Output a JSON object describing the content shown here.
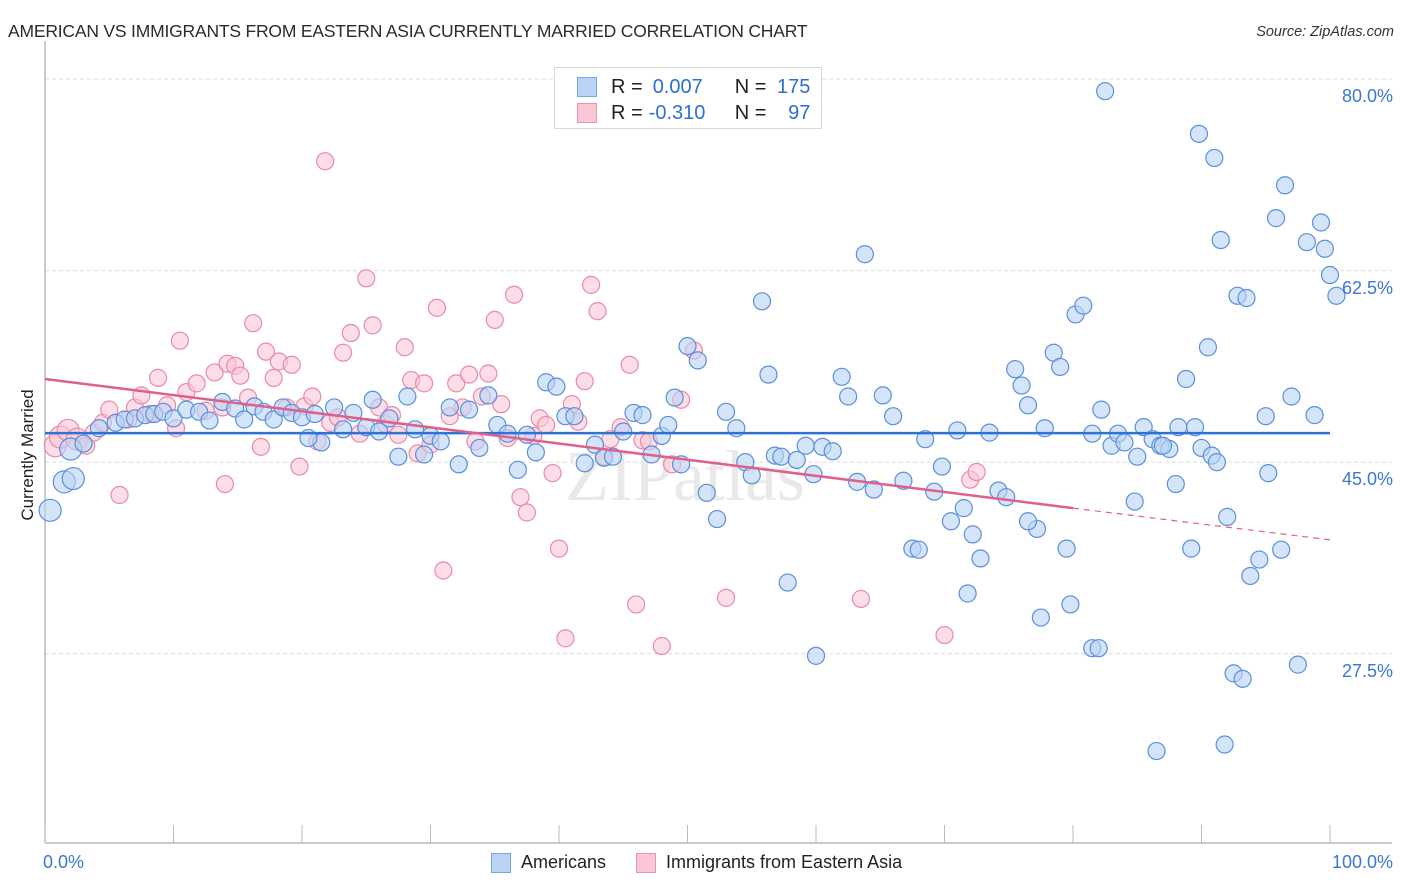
{
  "title": "AMERICAN VS IMMIGRANTS FROM EASTERN ASIA CURRENTLY MARRIED CORRELATION CHART",
  "source": "Source: ZipAtlas.com",
  "watermark": "ZIPatlas",
  "legend_top": {
    "rows": [
      {
        "series": "Americans",
        "r_label": "R =",
        "r_value": "0.007",
        "n_label": "N =",
        "n_value": "175"
      },
      {
        "series": "Immigrants from Eastern Asia",
        "r_label": "R =",
        "r_value": "-0.310",
        "n_label": "N =",
        "n_value": "97"
      }
    ]
  },
  "colors": {
    "blue_fill": "#b9d3f5",
    "blue_stroke": "#5b8fdc",
    "blue_line": "#2f72d6",
    "pink_fill": "#fbc6d6",
    "pink_stroke": "#e98aa8",
    "pink_line": "#e0608d",
    "tick_text": "#3a78d4",
    "grid": "#dcdcdc"
  },
  "chart_data": {
    "type": "scatter",
    "title": "AMERICAN VS IMMIGRANTS FROM EASTERN ASIA CURRENTLY MARRIED CORRELATION CHART",
    "xlabel": "",
    "ylabel": "Currently Married",
    "xlim": [
      0,
      100
    ],
    "ylim": [
      10.2,
      81.2
    ],
    "x_tick_labels": [
      "0.0%",
      "100.0%"
    ],
    "y_ticks": [
      80.0,
      62.5,
      45.0,
      27.5
    ],
    "y_tick_labels": [
      "80.0%",
      "62.5%",
      "45.0%",
      "27.5%"
    ],
    "grid": true,
    "legend": "top-center and bottom-center",
    "series": [
      {
        "name": "Americans",
        "r": 0.007,
        "n": 175,
        "trend": {
          "x": [
            0,
            100
          ],
          "y": [
            47.65,
            47.65
          ],
          "dashed_from_x": null
        },
        "points": [
          [
            0.4,
            40.6
          ],
          [
            1.5,
            43.2
          ],
          [
            2.2,
            43.5
          ],
          [
            2.0,
            46.2
          ],
          [
            3.0,
            46.7
          ],
          [
            4.2,
            48.1
          ],
          [
            5.5,
            48.6
          ],
          [
            6.2,
            48.9
          ],
          [
            7.0,
            49.0
          ],
          [
            7.8,
            49.3
          ],
          [
            8.5,
            49.4
          ],
          [
            9.2,
            49.6
          ],
          [
            10.0,
            49.0
          ],
          [
            11.0,
            49.8
          ],
          [
            12.0,
            49.6
          ],
          [
            12.8,
            48.8
          ],
          [
            13.8,
            50.5
          ],
          [
            14.8,
            49.9
          ],
          [
            15.5,
            48.9
          ],
          [
            16.3,
            50.1
          ],
          [
            17.0,
            49.6
          ],
          [
            17.8,
            48.9
          ],
          [
            18.5,
            50.0
          ],
          [
            19.2,
            49.5
          ],
          [
            20.0,
            49.1
          ],
          [
            21.0,
            49.4
          ],
          [
            21.5,
            46.8
          ],
          [
            20.5,
            47.2
          ],
          [
            22.5,
            50.0
          ],
          [
            23.2,
            48.0
          ],
          [
            24.0,
            49.5
          ],
          [
            25.0,
            48.2
          ],
          [
            25.5,
            50.7
          ],
          [
            26.0,
            47.8
          ],
          [
            26.8,
            49.0
          ],
          [
            27.5,
            45.5
          ],
          [
            28.2,
            51.0
          ],
          [
            28.8,
            48.0
          ],
          [
            29.5,
            45.7
          ],
          [
            30.0,
            47.4
          ],
          [
            30.8,
            46.9
          ],
          [
            31.5,
            50.0
          ],
          [
            32.2,
            44.8
          ],
          [
            33.0,
            49.8
          ],
          [
            33.8,
            46.3
          ],
          [
            34.5,
            51.1
          ],
          [
            35.2,
            48.4
          ],
          [
            36.0,
            47.6
          ],
          [
            36.8,
            44.3
          ],
          [
            37.5,
            47.5
          ],
          [
            38.2,
            45.9
          ],
          [
            39.0,
            52.3
          ],
          [
            39.8,
            51.9
          ],
          [
            40.5,
            49.2
          ],
          [
            41.2,
            49.2
          ],
          [
            42.0,
            44.9
          ],
          [
            42.8,
            46.6
          ],
          [
            43.5,
            45.4
          ],
          [
            44.2,
            45.5
          ],
          [
            45.0,
            47.8
          ],
          [
            45.8,
            49.5
          ],
          [
            46.5,
            49.3
          ],
          [
            47.2,
            45.7
          ],
          [
            48.0,
            47.4
          ],
          [
            48.5,
            48.4
          ],
          [
            49.0,
            50.9
          ],
          [
            49.5,
            44.8
          ],
          [
            50.0,
            55.6
          ],
          [
            50.8,
            54.3
          ],
          [
            51.5,
            42.2
          ],
          [
            52.3,
            39.8
          ],
          [
            53.0,
            49.6
          ],
          [
            53.8,
            48.1
          ],
          [
            54.5,
            45.0
          ],
          [
            55.0,
            43.8
          ],
          [
            55.8,
            59.7
          ],
          [
            56.3,
            53.0
          ],
          [
            56.8,
            45.6
          ],
          [
            57.3,
            45.5
          ],
          [
            57.8,
            34.0
          ],
          [
            58.5,
            45.2
          ],
          [
            59.2,
            46.5
          ],
          [
            59.8,
            43.9
          ],
          [
            60.5,
            46.4
          ],
          [
            60.0,
            27.3
          ],
          [
            61.3,
            46.0
          ],
          [
            62.0,
            52.8
          ],
          [
            62.5,
            51.0
          ],
          [
            63.2,
            43.2
          ],
          [
            63.8,
            64.0
          ],
          [
            64.5,
            42.5
          ],
          [
            65.2,
            51.1
          ],
          [
            66.0,
            49.2
          ],
          [
            66.8,
            43.3
          ],
          [
            67.5,
            37.1
          ],
          [
            68.0,
            37.0
          ],
          [
            68.5,
            47.1
          ],
          [
            69.2,
            42.3
          ],
          [
            69.8,
            44.6
          ],
          [
            70.5,
            39.6
          ],
          [
            71.0,
            47.9
          ],
          [
            71.5,
            40.8
          ],
          [
            72.2,
            38.4
          ],
          [
            72.8,
            36.2
          ],
          [
            73.5,
            47.7
          ],
          [
            74.2,
            42.4
          ],
          [
            74.8,
            41.8
          ],
          [
            75.5,
            53.5
          ],
          [
            76.0,
            52.0
          ],
          [
            76.5,
            50.2
          ],
          [
            77.2,
            38.9
          ],
          [
            77.8,
            48.1
          ],
          [
            78.5,
            55.0
          ],
          [
            79.0,
            53.7
          ],
          [
            79.5,
            37.1
          ],
          [
            80.2,
            58.5
          ],
          [
            80.8,
            59.3
          ],
          [
            81.5,
            47.6
          ],
          [
            82.2,
            49.8
          ],
          [
            82.5,
            78.9
          ],
          [
            83.0,
            46.5
          ],
          [
            83.5,
            47.6
          ],
          [
            84.0,
            46.8
          ],
          [
            84.8,
            41.4
          ],
          [
            85.5,
            48.2
          ],
          [
            86.2,
            47.1
          ],
          [
            86.8,
            46.5
          ],
          [
            87.5,
            46.2
          ],
          [
            88.2,
            48.2
          ],
          [
            88.8,
            52.6
          ],
          [
            89.5,
            48.2
          ],
          [
            90.0,
            46.3
          ],
          [
            90.8,
            45.6
          ],
          [
            91.5,
            65.3
          ],
          [
            92.0,
            40.0
          ],
          [
            92.5,
            25.7
          ],
          [
            93.2,
            25.2
          ],
          [
            93.8,
            34.6
          ],
          [
            94.5,
            36.1
          ],
          [
            95.0,
            49.2
          ],
          [
            95.8,
            67.3
          ],
          [
            96.5,
            70.3
          ],
          [
            97.0,
            51.0
          ],
          [
            97.5,
            26.5
          ],
          [
            98.2,
            65.1
          ],
          [
            98.8,
            49.3
          ],
          [
            99.3,
            66.9
          ],
          [
            99.6,
            64.5
          ],
          [
            100.5,
            60.2
          ],
          [
            100.0,
            62.1
          ],
          [
            92.8,
            60.2
          ],
          [
            93.5,
            60.0
          ],
          [
            90.5,
            55.5
          ],
          [
            91.2,
            45.0
          ],
          [
            76.5,
            39.6
          ],
          [
            89.2,
            37.1
          ],
          [
            79.8,
            32.0
          ],
          [
            71.8,
            33.0
          ],
          [
            77.5,
            30.8
          ],
          [
            85.0,
            45.5
          ],
          [
            87.0,
            46.5
          ],
          [
            88.0,
            43.0
          ],
          [
            95.2,
            44.0
          ],
          [
            96.2,
            37.0
          ],
          [
            91.0,
            72.8
          ],
          [
            89.8,
            75.0
          ],
          [
            86.5,
            18.6
          ],
          [
            91.8,
            19.2
          ],
          [
            81.5,
            28.0
          ],
          [
            82.0,
            28.0
          ]
        ]
      },
      {
        "name": "Immigrants from Eastern Asia",
        "r": -0.31,
        "n": 97,
        "trend": {
          "x": [
            0,
            80
          ],
          "y": [
            52.6,
            40.8
          ],
          "dashed_to": {
            "x": 100,
            "y": 37.9
          }
        },
        "points": [
          [
            0.8,
            46.5
          ],
          [
            1.2,
            47.3
          ],
          [
            1.8,
            47.9
          ],
          [
            2.5,
            47.1
          ],
          [
            3.2,
            46.5
          ],
          [
            3.8,
            47.7
          ],
          [
            4.5,
            48.6
          ],
          [
            5.0,
            49.8
          ],
          [
            5.8,
            42.0
          ],
          [
            6.5,
            48.9
          ],
          [
            7.0,
            50.0
          ],
          [
            7.5,
            51.1
          ],
          [
            8.2,
            49.4
          ],
          [
            8.8,
            52.7
          ],
          [
            9.5,
            50.2
          ],
          [
            10.2,
            48.1
          ],
          [
            10.5,
            56.1
          ],
          [
            11.0,
            51.4
          ],
          [
            11.8,
            52.2
          ],
          [
            12.5,
            49.7
          ],
          [
            13.2,
            53.2
          ],
          [
            13.8,
            50.0
          ],
          [
            14.2,
            54.0
          ],
          [
            14.8,
            53.8
          ],
          [
            14.0,
            43.0
          ],
          [
            15.2,
            52.9
          ],
          [
            15.8,
            50.9
          ],
          [
            16.2,
            57.7
          ],
          [
            16.8,
            46.4
          ],
          [
            17.2,
            55.1
          ],
          [
            17.8,
            52.7
          ],
          [
            18.2,
            54.2
          ],
          [
            18.8,
            50.0
          ],
          [
            19.2,
            53.9
          ],
          [
            19.8,
            44.6
          ],
          [
            20.2,
            50.1
          ],
          [
            20.8,
            51.0
          ],
          [
            21.2,
            46.9
          ],
          [
            21.8,
            72.5
          ],
          [
            22.2,
            48.6
          ],
          [
            22.8,
            49.1
          ],
          [
            23.2,
            55.0
          ],
          [
            23.8,
            56.8
          ],
          [
            24.5,
            47.6
          ],
          [
            25.0,
            61.8
          ],
          [
            25.5,
            57.5
          ],
          [
            26.0,
            50.0
          ],
          [
            26.5,
            48.5
          ],
          [
            27.0,
            49.3
          ],
          [
            27.5,
            47.5
          ],
          [
            28.0,
            55.5
          ],
          [
            28.5,
            52.5
          ],
          [
            29.0,
            45.8
          ],
          [
            29.5,
            52.2
          ],
          [
            30.0,
            46.6
          ],
          [
            30.5,
            59.1
          ],
          [
            31.0,
            35.1
          ],
          [
            31.5,
            49.2
          ],
          [
            32.0,
            52.2
          ],
          [
            32.5,
            50.0
          ],
          [
            33.0,
            53.0
          ],
          [
            33.5,
            46.9
          ],
          [
            34.0,
            51.0
          ],
          [
            34.5,
            53.1
          ],
          [
            35.0,
            58.0
          ],
          [
            35.5,
            50.3
          ],
          [
            36.0,
            47.2
          ],
          [
            36.5,
            60.3
          ],
          [
            37.0,
            41.8
          ],
          [
            37.5,
            40.4
          ],
          [
            38.0,
            47.4
          ],
          [
            38.5,
            49.0
          ],
          [
            39.0,
            48.4
          ],
          [
            39.5,
            44.0
          ],
          [
            40.0,
            37.1
          ],
          [
            40.5,
            28.9
          ],
          [
            41.0,
            50.3
          ],
          [
            41.5,
            48.7
          ],
          [
            42.0,
            52.4
          ],
          [
            42.5,
            61.2
          ],
          [
            43.0,
            58.8
          ],
          [
            43.5,
            45.5
          ],
          [
            44.0,
            47.1
          ],
          [
            44.8,
            48.2
          ],
          [
            45.5,
            53.9
          ],
          [
            46.0,
            32.0
          ],
          [
            46.5,
            47.0
          ],
          [
            47.0,
            46.9
          ],
          [
            48.0,
            28.2
          ],
          [
            48.8,
            44.8
          ],
          [
            49.5,
            50.7
          ],
          [
            50.5,
            55.2
          ],
          [
            53.0,
            32.6
          ],
          [
            63.5,
            32.5
          ],
          [
            72.0,
            43.4
          ],
          [
            72.5,
            44.1
          ],
          [
            70.0,
            29.2
          ]
        ]
      }
    ]
  }
}
